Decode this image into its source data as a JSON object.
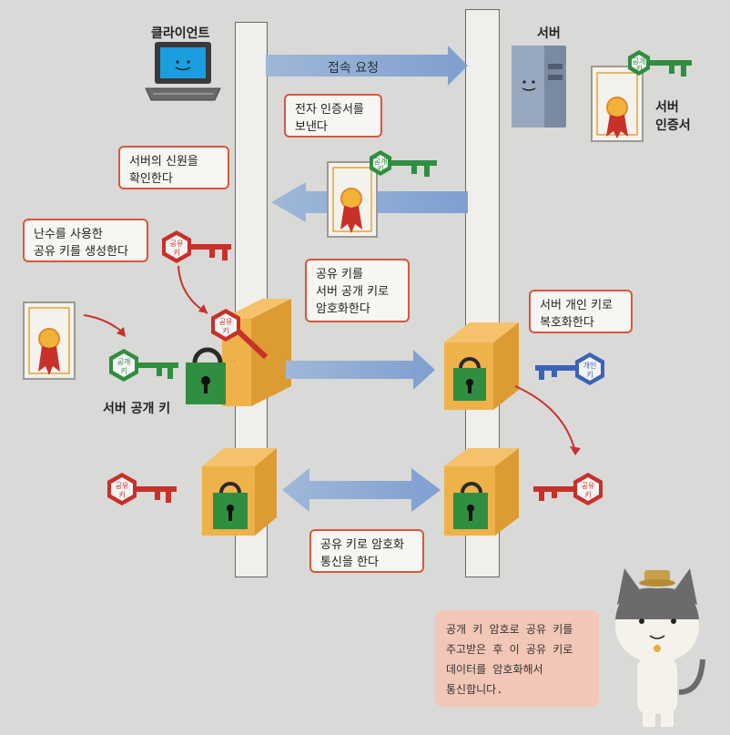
{
  "diagram": {
    "client_label": "클라이언트",
    "server_label": "서버",
    "server_cert_label": "서버\n인증서",
    "server_public_key_label": "서버 공개 키",
    "key_text": {
      "public": "공개\n키",
      "shared": "공유\n키",
      "private": "개인\n키"
    },
    "arrows": {
      "connect_request": "접속 요청"
    },
    "bubbles": {
      "send_cert": "전자 인증서를\n보낸다",
      "verify_server": "서버의 신원을\n확인한다",
      "generate_shared_key": "난수를 사용한\n공유 키를 생성한다",
      "encrypt_shared_key": "공유 키를\n서버 공개 키로\n암호화한다",
      "decrypt_private": "서버 개인 키로\n복호화한다",
      "communicate": "공유 키로 암호화\n통신을 한다"
    },
    "note": "공개 키 암호로 공유 키를\n주고받은 후 이 공유 키로\n데이터를 암호화해서\n통신합니다."
  }
}
